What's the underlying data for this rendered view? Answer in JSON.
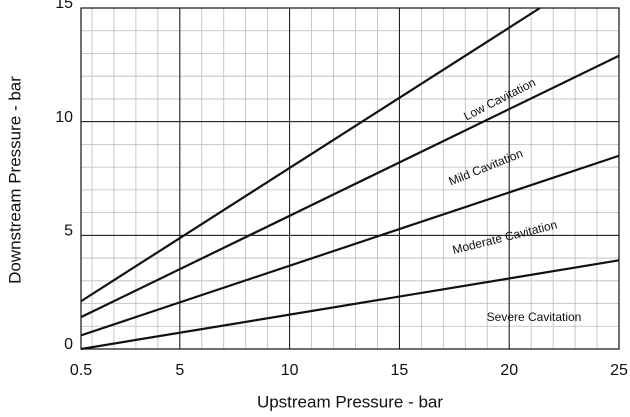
{
  "chart_data": {
    "type": "line",
    "x_label": "Upstream Pressure - bar",
    "y_label": "Downstream Pressure - bar",
    "xlim": [
      0.5,
      25
    ],
    "ylim": [
      0,
      15
    ],
    "xticks": [
      0.5,
      5,
      10,
      15,
      20,
      25
    ],
    "yticks": [
      0,
      5,
      10,
      15
    ],
    "grid": true,
    "minor_grid_step": 1,
    "series": [
      {
        "color": "#111111",
        "x": [
          0.5,
          21.4
        ],
        "values": [
          2.1,
          15
        ]
      },
      {
        "color": "#111111",
        "x": [
          0.5,
          25
        ],
        "values": [
          1.4,
          12.9
        ]
      },
      {
        "color": "#111111",
        "x": [
          0.5,
          25
        ],
        "values": [
          0.6,
          8.5
        ]
      },
      {
        "color": "#111111",
        "x": [
          0.5,
          25
        ],
        "values": [
          0,
          3.9
        ]
      }
    ],
    "annotations": [
      "Low Cavitation",
      "Mild Cavitation",
      "Moderate Cavitation",
      "Severe Cavitation"
    ]
  }
}
